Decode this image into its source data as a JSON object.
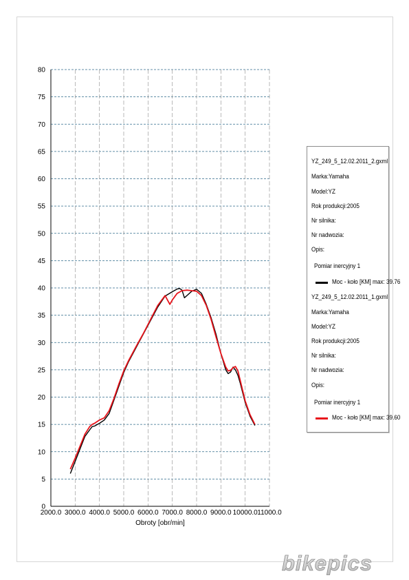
{
  "chart_data": {
    "type": "line",
    "title": "",
    "xlabel": "Obroty [obr/min]",
    "ylabel": "",
    "xlim": [
      2000,
      11000
    ],
    "ylim": [
      0,
      80
    ],
    "x_ticks": [
      "2000.0",
      "3000.0",
      "4000.0",
      "5000.0",
      "6000.0",
      "7000.0",
      "8000.0",
      "9000.0",
      "10000.0",
      "11000.0"
    ],
    "y_ticks": [
      "0",
      "5",
      "10",
      "15",
      "20",
      "25",
      "30",
      "35",
      "40",
      "45",
      "50",
      "55",
      "60",
      "65",
      "70",
      "75",
      "80"
    ],
    "grid": true,
    "legend_position": "right",
    "series": [
      {
        "name": "Moc - koło [KM] max: 39.76",
        "color": "#000000",
        "x": [
          2800,
          3000,
          3200,
          3400,
          3600,
          3700,
          3800,
          4000,
          4200,
          4400,
          4600,
          4800,
          5000,
          5200,
          5500,
          5800,
          6100,
          6400,
          6700,
          7000,
          7200,
          7300,
          7400,
          7500,
          7600,
          7800,
          8000,
          8200,
          8400,
          8600,
          8800,
          9000,
          9200,
          9300,
          9400,
          9500,
          9600,
          9700,
          9800,
          10000,
          10200,
          10400
        ],
        "y": [
          6.0,
          8.2,
          10.5,
          12.8,
          14.0,
          14.6,
          14.7,
          15.2,
          15.8,
          17.0,
          19.5,
          22.0,
          24.5,
          26.5,
          29.0,
          31.5,
          34.0,
          36.5,
          38.5,
          39.3,
          39.8,
          39.9,
          39.6,
          38.2,
          38.6,
          39.4,
          39.76,
          39.0,
          37.0,
          34.5,
          31.5,
          28.0,
          25.0,
          24.3,
          24.6,
          25.5,
          25.0,
          24.0,
          22.5,
          19.0,
          16.5,
          14.8
        ]
      },
      {
        "name": "Moc - koło [KM] max: 39.60",
        "color": "#e8141b",
        "x": [
          2800,
          3000,
          3200,
          3400,
          3600,
          3700,
          3800,
          4000,
          4200,
          4400,
          4600,
          4800,
          5000,
          5200,
          5500,
          5800,
          6100,
          6400,
          6700,
          6900,
          7000,
          7200,
          7400,
          7600,
          7800,
          8000,
          8200,
          8400,
          8600,
          8800,
          9000,
          9200,
          9300,
          9400,
          9500,
          9600,
          9700,
          9800,
          10000,
          10200,
          10400
        ],
        "y": [
          6.8,
          8.8,
          11.0,
          13.2,
          14.6,
          15.0,
          15.2,
          15.8,
          16.2,
          17.5,
          19.8,
          22.4,
          24.8,
          26.7,
          29.2,
          31.6,
          34.2,
          36.8,
          38.6,
          37.0,
          37.8,
          39.0,
          39.5,
          39.6,
          39.5,
          39.4,
          38.6,
          36.8,
          34.2,
          31.0,
          28.0,
          25.5,
          24.8,
          24.9,
          25.4,
          25.6,
          24.8,
          23.0,
          19.3,
          16.8,
          15.0
        ]
      }
    ]
  },
  "legend": {
    "entries": [
      {
        "file": "YZ_249_5_12.02.2011_2.gxml",
        "marka": "Marka:Yamaha",
        "model": "Model:YZ",
        "rok": "Rok produkcji:2005",
        "silnik": "Nr silnika:",
        "nadwozie": "Nr nadwozia:",
        "opis": "Opis:",
        "pomiar": "Pomiar inercyjny 1",
        "series_label": "Moc - koło [KM] max: 39.76",
        "color": "#000000"
      },
      {
        "file": "YZ_249_5_12.02.2011_1.gxml",
        "marka": "Marka:Yamaha",
        "model": "Model:YZ",
        "rok": "Rok produkcji:2005",
        "silnik": "Nr silnika:",
        "nadwozie": "Nr nadwozia:",
        "opis": "Opis:",
        "pomiar": "Pomiar inercyjny 1",
        "series_label": "Moc - koło [KM] max: 39.60",
        "color": "#e8141b"
      }
    ]
  },
  "watermark": {
    "text": "bikepics"
  },
  "colors": {
    "grid_h": "#2f6a8a",
    "grid_v": "#9a9a9a",
    "axis": "#000000"
  }
}
